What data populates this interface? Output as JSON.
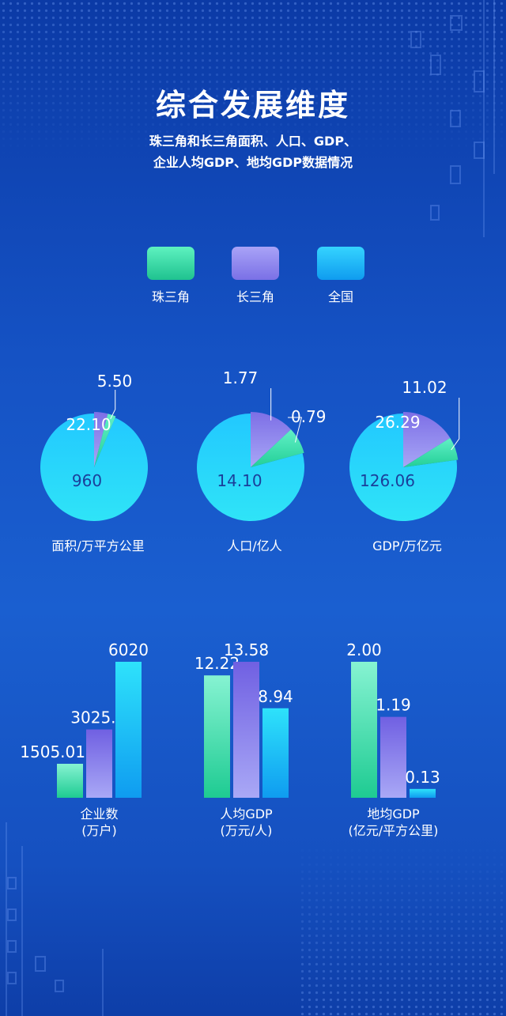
{
  "title": "综合发展维度",
  "subtitle_lines": [
    "珠三角和长三角面积、人口、GDP、",
    "企业人均GDP、地均GDP数据情况"
  ],
  "legend": [
    {
      "label": "珠三角",
      "color": "#2fd7a3"
    },
    {
      "label": "长三角",
      "color": "#8f86ee"
    },
    {
      "label": "全国",
      "color": "#1eb6f5"
    }
  ],
  "chart_data": [
    {
      "type": "pie",
      "category": "面积/万平方公里",
      "slices": [
        {
          "series": "全国",
          "value": 960
        },
        {
          "series": "长三角",
          "value": 22.1
        },
        {
          "series": "珠三角",
          "value": 5.5
        }
      ],
      "labels": [
        "960",
        "22.10",
        "5.50"
      ]
    },
    {
      "type": "pie",
      "category": "人口/亿人",
      "slices": [
        {
          "series": "全国",
          "value": 14.1
        },
        {
          "series": "长三角",
          "value": 1.77
        },
        {
          "series": "珠三角",
          "value": 0.79
        }
      ],
      "labels": [
        "14.10",
        "1.77",
        "0.79"
      ]
    },
    {
      "type": "pie",
      "category": "GDP/万亿元",
      "slices": [
        {
          "series": "全国",
          "value": 126.06
        },
        {
          "series": "长三角",
          "value": 26.29
        },
        {
          "series": "珠三角",
          "value": 11.02
        }
      ],
      "labels": [
        "126.06",
        "26.29",
        "11.02"
      ]
    },
    {
      "type": "bar",
      "category": [
        "企业数",
        "(万户)"
      ],
      "values": [
        1505.01,
        3025.04,
        6020
      ],
      "labels": [
        "1505.01",
        "3025.04",
        "6020"
      ]
    },
    {
      "type": "bar",
      "category": [
        "人均GDP",
        "(万元/人)"
      ],
      "values": [
        12.22,
        13.58,
        8.94
      ],
      "labels": [
        "12.22",
        "13.58",
        "8.94"
      ]
    },
    {
      "type": "bar",
      "category": [
        "地均GDP",
        "(亿元/平方公里)"
      ],
      "values": [
        2.0,
        1.19,
        0.13
      ],
      "labels": [
        "2.00",
        "1.19",
        "0.13"
      ]
    }
  ]
}
